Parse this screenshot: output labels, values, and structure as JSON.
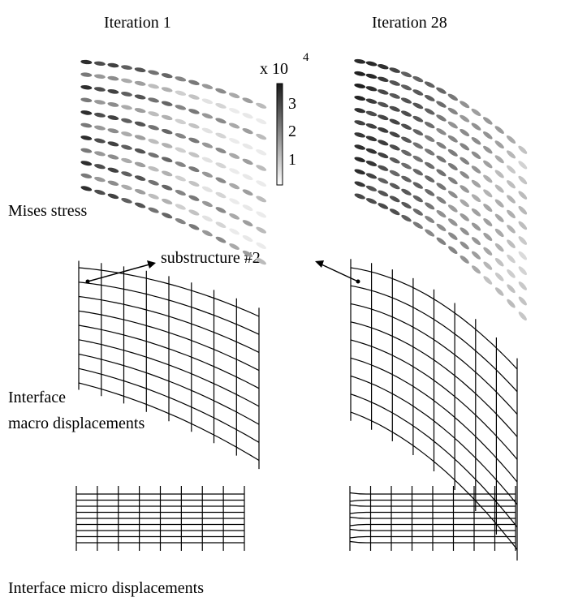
{
  "columns": {
    "left": "Iteration 1",
    "right": "Iteration 28"
  },
  "colorbar": {
    "multiplier": "x 10",
    "exponent": "4",
    "ticks": [
      "3",
      "2",
      "1"
    ]
  },
  "rows": {
    "stress": "Mises stress",
    "macro_line1": "Interface",
    "macro_line2": "macro displacements",
    "micro": "Interface micro displacements"
  },
  "annotation": {
    "label": "substructure #2"
  }
}
